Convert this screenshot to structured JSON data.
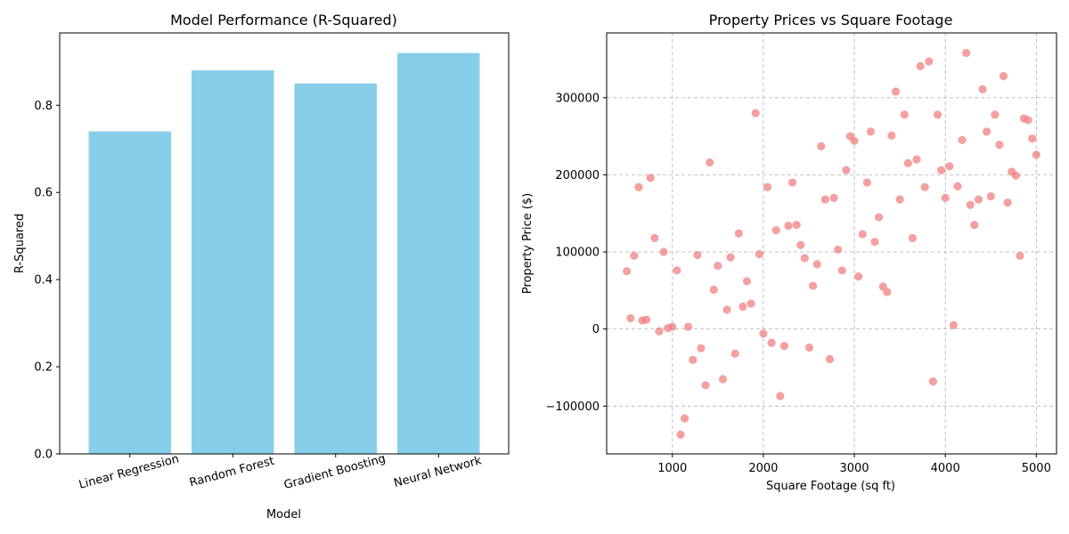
{
  "colors": {
    "bar": "#87CEEB",
    "point": "#F08080"
  },
  "chart_data": [
    {
      "type": "bar",
      "title": "Model Performance (R-Squared)",
      "xlabel": "Model",
      "ylabel": "R-Squared",
      "categories": [
        "Linear Regression",
        "Random Forest",
        "Gradient Boosting",
        "Neural Network"
      ],
      "values": [
        0.74,
        0.88,
        0.85,
        0.92
      ],
      "ylim": [
        0,
        0.966
      ],
      "yticks": [
        0.0,
        0.2,
        0.4,
        0.6,
        0.8
      ],
      "ytick_labels": [
        "0.0",
        "0.2",
        "0.4",
        "0.6",
        "0.8"
      ],
      "grid": false
    },
    {
      "type": "scatter",
      "title": "Property Prices vs Square Footage",
      "xlabel": "Square Footage (sq ft)",
      "ylabel": "Property Price ($)",
      "xlim": [
        278,
        5222
      ],
      "ylim": [
        -162000,
        384000
      ],
      "xticks": [
        1000,
        2000,
        3000,
        4000,
        5000
      ],
      "xtick_labels": [
        "1000",
        "2000",
        "3000",
        "4000",
        "5000"
      ],
      "yticks": [
        -100000,
        0,
        100000,
        200000,
        300000
      ],
      "ytick_labels": [
        "−100000",
        "0",
        "100000",
        "200000",
        "300000"
      ],
      "grid": true,
      "points": [
        [
          500,
          75000
        ],
        [
          540,
          14000
        ],
        [
          580,
          95000
        ],
        [
          630,
          184000
        ],
        [
          670,
          11000
        ],
        [
          715,
          12000
        ],
        [
          760,
          196000
        ],
        [
          805,
          118000
        ],
        [
          855,
          -3000
        ],
        [
          905,
          100000
        ],
        [
          950,
          1000
        ],
        [
          1000,
          3000
        ],
        [
          1050,
          76000
        ],
        [
          1090,
          -137000
        ],
        [
          1135,
          -116000
        ],
        [
          1175,
          3000
        ],
        [
          1225,
          -40000
        ],
        [
          1275,
          96000
        ],
        [
          1315,
          -25000
        ],
        [
          1365,
          -73000
        ],
        [
          1410,
          216000
        ],
        [
          1455,
          51000
        ],
        [
          1500,
          82000
        ],
        [
          1555,
          -65000
        ],
        [
          1600,
          25000
        ],
        [
          1640,
          93000
        ],
        [
          1690,
          -32000
        ],
        [
          1730,
          124000
        ],
        [
          1775,
          29000
        ],
        [
          1820,
          62000
        ],
        [
          1865,
          33000
        ],
        [
          1915,
          280000
        ],
        [
          1955,
          97000
        ],
        [
          2000,
          -6000
        ],
        [
          2045,
          184000
        ],
        [
          2090,
          -18000
        ],
        [
          2140,
          128000
        ],
        [
          2185,
          -87000
        ],
        [
          2230,
          -22000
        ],
        [
          2275,
          134000
        ],
        [
          2320,
          190000
        ],
        [
          2365,
          135000
        ],
        [
          2410,
          109000
        ],
        [
          2455,
          92000
        ],
        [
          2505,
          -24000
        ],
        [
          2545,
          56000
        ],
        [
          2590,
          84000
        ],
        [
          2635,
          237000
        ],
        [
          2680,
          168000
        ],
        [
          2730,
          -39000
        ],
        [
          2775,
          170000
        ],
        [
          2820,
          103000
        ],
        [
          2865,
          76000
        ],
        [
          2910,
          206000
        ],
        [
          2955,
          250000
        ],
        [
          3000,
          244000
        ],
        [
          3045,
          68000
        ],
        [
          3090,
          123000
        ],
        [
          3140,
          190000
        ],
        [
          3180,
          256000
        ],
        [
          3225,
          113000
        ],
        [
          3270,
          145000
        ],
        [
          3315,
          55000
        ],
        [
          3360,
          48000
        ],
        [
          3410,
          251000
        ],
        [
          3455,
          308000
        ],
        [
          3500,
          168000
        ],
        [
          3550,
          278000
        ],
        [
          3590,
          215000
        ],
        [
          3640,
          118000
        ],
        [
          3685,
          220000
        ],
        [
          3725,
          341000
        ],
        [
          3775,
          184000
        ],
        [
          3820,
          347000
        ],
        [
          3865,
          -68000
        ],
        [
          3915,
          278000
        ],
        [
          3955,
          206000
        ],
        [
          4000,
          170000
        ],
        [
          4045,
          211000
        ],
        [
          4090,
          5000
        ],
        [
          4135,
          185000
        ],
        [
          4185,
          245000
        ],
        [
          4230,
          358000
        ],
        [
          4275,
          161000
        ],
        [
          4320,
          135000
        ],
        [
          4365,
          168000
        ],
        [
          4410,
          311000
        ],
        [
          4455,
          256000
        ],
        [
          4500,
          172000
        ],
        [
          4545,
          278000
        ],
        [
          4595,
          239000
        ],
        [
          4640,
          328000
        ],
        [
          4685,
          164000
        ],
        [
          4730,
          204000
        ],
        [
          4775,
          199000
        ],
        [
          4820,
          95000
        ],
        [
          4865,
          273000
        ],
        [
          4910,
          271000
        ],
        [
          4955,
          247000
        ],
        [
          5000,
          226000
        ]
      ]
    }
  ]
}
